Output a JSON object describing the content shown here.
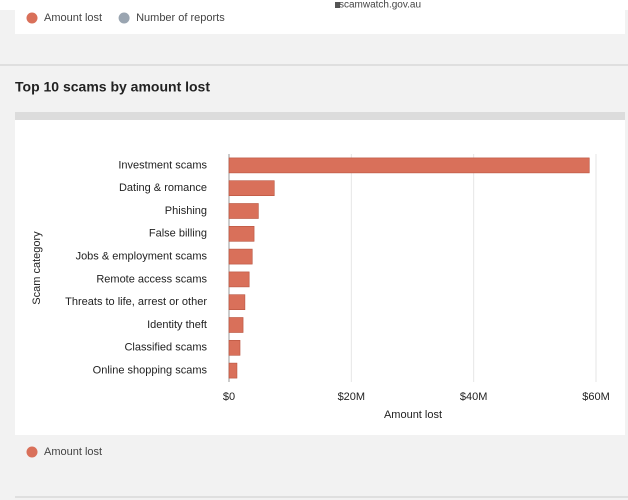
{
  "page": {
    "url": "scamwatch.gov.au",
    "top_legend": [
      {
        "name": "Amount lost",
        "color": "#d9705a"
      },
      {
        "name": "Number of reports",
        "color": "#9aa5b1"
      }
    ],
    "section_title": "Top 10 scams by amount lost"
  },
  "chart_data": {
    "type": "barh",
    "categories": [
      "Investment scams",
      "Dating & romance",
      "Phishing",
      "False billing",
      "Jobs & employment scams",
      "Remote access scams",
      "Threats to life, arrest or other",
      "Identity theft",
      "Classified scams",
      "Online shopping scams"
    ],
    "series": [
      {
        "name": "Amount lost",
        "color": "#d9705a",
        "values": [
          58900000,
          7400000,
          4800000,
          4100000,
          3800000,
          3300000,
          2600000,
          2300000,
          1800000,
          1300000
        ]
      }
    ],
    "xlim": [
      0,
      60000000
    ],
    "xticks": [
      {
        "value": 0,
        "label": "$0"
      },
      {
        "value": 20000000,
        "label": "$20M"
      },
      {
        "value": 40000000,
        "label": "$40M"
      },
      {
        "value": 60000000,
        "label": "$60M"
      }
    ],
    "x_label": "Amount lost",
    "y_label": "Scam category",
    "grid": true
  }
}
